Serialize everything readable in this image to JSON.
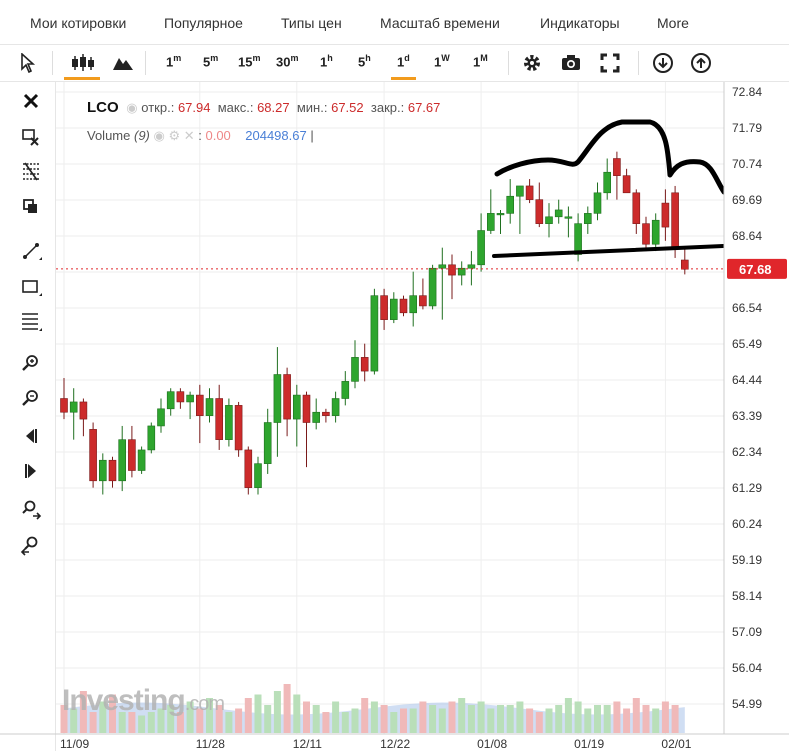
{
  "menu": {
    "items": [
      "Мои котировки",
      "Популярное",
      "Типы цен",
      "Масштаб времени",
      "Индикаторы",
      "More"
    ]
  },
  "toolbar": {
    "timeframes": [
      {
        "main": "1",
        "sup": "m"
      },
      {
        "main": "5",
        "sup": "m"
      },
      {
        "main": "15",
        "sup": "m"
      },
      {
        "main": "30",
        "sup": "m"
      },
      {
        "main": "1",
        "sup": "h"
      },
      {
        "main": "5",
        "sup": "h"
      },
      {
        "main": "1",
        "sup": "d"
      },
      {
        "main": "1",
        "sup": "W"
      },
      {
        "main": "1",
        "sup": "M"
      }
    ],
    "active_timeframe": "1d",
    "icons": [
      "cursor-icon",
      "candlestick-icon",
      "mountain-icon",
      "gear-icon",
      "camera-icon",
      "fullscreen-icon",
      "download-icon",
      "upload-icon"
    ]
  },
  "sidebar": {
    "icons": [
      "close-icon",
      "remove-drawing-icon",
      "fib-icon",
      "copy-icon",
      "trendline-icon",
      "rectangle-icon",
      "lines-icon",
      "zoom-in-icon",
      "zoom-out-icon",
      "scroll-left-icon",
      "scroll-right-icon",
      "zoom-in-time-icon",
      "zoom-out-time-icon"
    ]
  },
  "legend": {
    "symbol": "LCO",
    "open_label": "откр.:",
    "open": "67.94",
    "high_label": "макс.:",
    "high": "68.27",
    "low_label": "мин.:",
    "low": "67.52",
    "close_label": "закр.:",
    "close": "67.67",
    "volume_label": "Volume",
    "volume_period": "(9)",
    "volume_value": "0.00",
    "volume_ma": "204498.67"
  },
  "watermark": {
    "main": "Investing",
    "suffix": ".com"
  },
  "colors": {
    "up": "#2ea52e",
    "down": "#cc2b2b",
    "price_tag": "#e0262b",
    "volume_area": "#a9c3ea",
    "annotation": "#000000"
  },
  "chart_data": {
    "type": "candlestick",
    "y_ticks": [
      "72.84",
      "71.79",
      "70.74",
      "69.69",
      "68.64",
      "67.59",
      "66.54",
      "65.49",
      "64.44",
      "63.39",
      "62.34",
      "61.29",
      "60.24",
      "59.19",
      "58.14",
      "57.09",
      "56.04",
      "54.99"
    ],
    "ylim": [
      54.99,
      72.84
    ],
    "x_ticks": [
      "11/09",
      "11/28",
      "12/11",
      "12/22",
      "01/08",
      "01/19",
      "02/01"
    ],
    "last_price": "67.68",
    "ohlc": [
      [
        63.9,
        64.5,
        63.3,
        63.5
      ],
      [
        63.5,
        64.2,
        62.7,
        63.8
      ],
      [
        63.8,
        63.9,
        62.8,
        63.3
      ],
      [
        63.0,
        63.2,
        61.3,
        61.5
      ],
      [
        61.5,
        62.3,
        61.1,
        62.1
      ],
      [
        62.1,
        62.2,
        61.3,
        61.5
      ],
      [
        61.5,
        63.1,
        61.2,
        62.7
      ],
      [
        62.7,
        63.1,
        61.6,
        61.8
      ],
      [
        61.8,
        62.5,
        61.7,
        62.4
      ],
      [
        62.4,
        63.2,
        62.3,
        63.1
      ],
      [
        63.1,
        63.9,
        62.9,
        63.6
      ],
      [
        63.6,
        64.2,
        63.4,
        64.1
      ],
      [
        64.1,
        64.2,
        63.6,
        63.8
      ],
      [
        63.8,
        64.1,
        63.3,
        64.0
      ],
      [
        64.0,
        64.3,
        62.6,
        63.4
      ],
      [
        63.4,
        64.2,
        63.2,
        63.9
      ],
      [
        63.9,
        64.3,
        62.4,
        62.7
      ],
      [
        62.7,
        63.9,
        62.5,
        63.7
      ],
      [
        63.7,
        63.8,
        62.2,
        62.4
      ],
      [
        62.4,
        62.5,
        61.1,
        61.3
      ],
      [
        61.3,
        62.2,
        61.1,
        62.0
      ],
      [
        62.0,
        63.6,
        61.7,
        63.2
      ],
      [
        63.2,
        65.4,
        62.2,
        64.6
      ],
      [
        64.6,
        64.8,
        62.8,
        63.3
      ],
      [
        63.3,
        64.3,
        62.5,
        64.0
      ],
      [
        64.0,
        64.1,
        61.9,
        63.2
      ],
      [
        63.2,
        63.9,
        63.0,
        63.5
      ],
      [
        63.5,
        63.6,
        63.2,
        63.4
      ],
      [
        63.4,
        64.1,
        63.2,
        63.9
      ],
      [
        63.9,
        64.7,
        63.7,
        64.4
      ],
      [
        64.4,
        65.6,
        64.2,
        65.1
      ],
      [
        65.1,
        65.5,
        64.4,
        64.7
      ],
      [
        64.7,
        67.1,
        64.6,
        66.9
      ],
      [
        66.9,
        67.1,
        65.9,
        66.2
      ],
      [
        66.2,
        67.0,
        66.1,
        66.8
      ],
      [
        66.8,
        66.9,
        66.3,
        66.4
      ],
      [
        66.4,
        67.6,
        66.0,
        66.9
      ],
      [
        66.9,
        67.4,
        66.5,
        66.6
      ],
      [
        66.6,
        67.8,
        66.5,
        67.7
      ],
      [
        67.7,
        68.3,
        66.2,
        67.8
      ],
      [
        67.8,
        68.1,
        66.8,
        67.5
      ],
      [
        67.5,
        67.9,
        67.2,
        67.7
      ],
      [
        67.7,
        68.2,
        67.2,
        67.8
      ],
      [
        67.8,
        69.3,
        67.6,
        68.8
      ],
      [
        68.8,
        70.0,
        68.7,
        69.3
      ],
      [
        69.3,
        69.4,
        68.7,
        69.3
      ],
      [
        69.3,
        70.3,
        69.0,
        69.8
      ],
      [
        69.8,
        70.1,
        68.7,
        70.1
      ],
      [
        70.1,
        70.3,
        69.6,
        69.7
      ],
      [
        69.7,
        70.2,
        68.9,
        69.0
      ],
      [
        69.0,
        69.6,
        68.6,
        69.2
      ],
      [
        69.2,
        69.7,
        69.0,
        69.4
      ],
      [
        69.2,
        69.5,
        68.6,
        69.2
      ],
      [
        68.1,
        69.3,
        67.9,
        69.0
      ],
      [
        69.0,
        69.5,
        68.7,
        69.3
      ],
      [
        69.3,
        70.2,
        69.1,
        69.9
      ],
      [
        69.9,
        70.9,
        69.7,
        70.5
      ],
      [
        70.9,
        71.1,
        69.7,
        70.4
      ],
      [
        70.4,
        70.6,
        69.9,
        69.9
      ],
      [
        69.9,
        70.0,
        68.7,
        69.0
      ],
      [
        69.0,
        69.2,
        68.2,
        68.4
      ],
      [
        68.4,
        69.3,
        68.2,
        69.1
      ],
      [
        69.6,
        70.0,
        68.5,
        68.9
      ],
      [
        69.9,
        70.1,
        68.0,
        68.3
      ],
      [
        67.94,
        68.27,
        67.52,
        67.67
      ]
    ],
    "volume": [
      0.4,
      0.35,
      0.6,
      0.3,
      0.45,
      0.55,
      0.3,
      0.3,
      0.25,
      0.3,
      0.35,
      0.4,
      0.3,
      0.45,
      0.35,
      0.5,
      0.4,
      0.3,
      0.35,
      0.5,
      0.55,
      0.4,
      0.6,
      0.7,
      0.55,
      0.45,
      0.4,
      0.3,
      0.45,
      0.3,
      0.35,
      0.5,
      0.45,
      0.4,
      0.3,
      0.35,
      0.35,
      0.45,
      0.4,
      0.35,
      0.45,
      0.5,
      0.4,
      0.45,
      0.35,
      0.4,
      0.4,
      0.45,
      0.35,
      0.3,
      0.35,
      0.4,
      0.5,
      0.45,
      0.35,
      0.4,
      0.4,
      0.45,
      0.35,
      0.5,
      0.4,
      0.35,
      0.45,
      0.4,
      0.0
    ],
    "grid": true,
    "legend": "top-left"
  }
}
